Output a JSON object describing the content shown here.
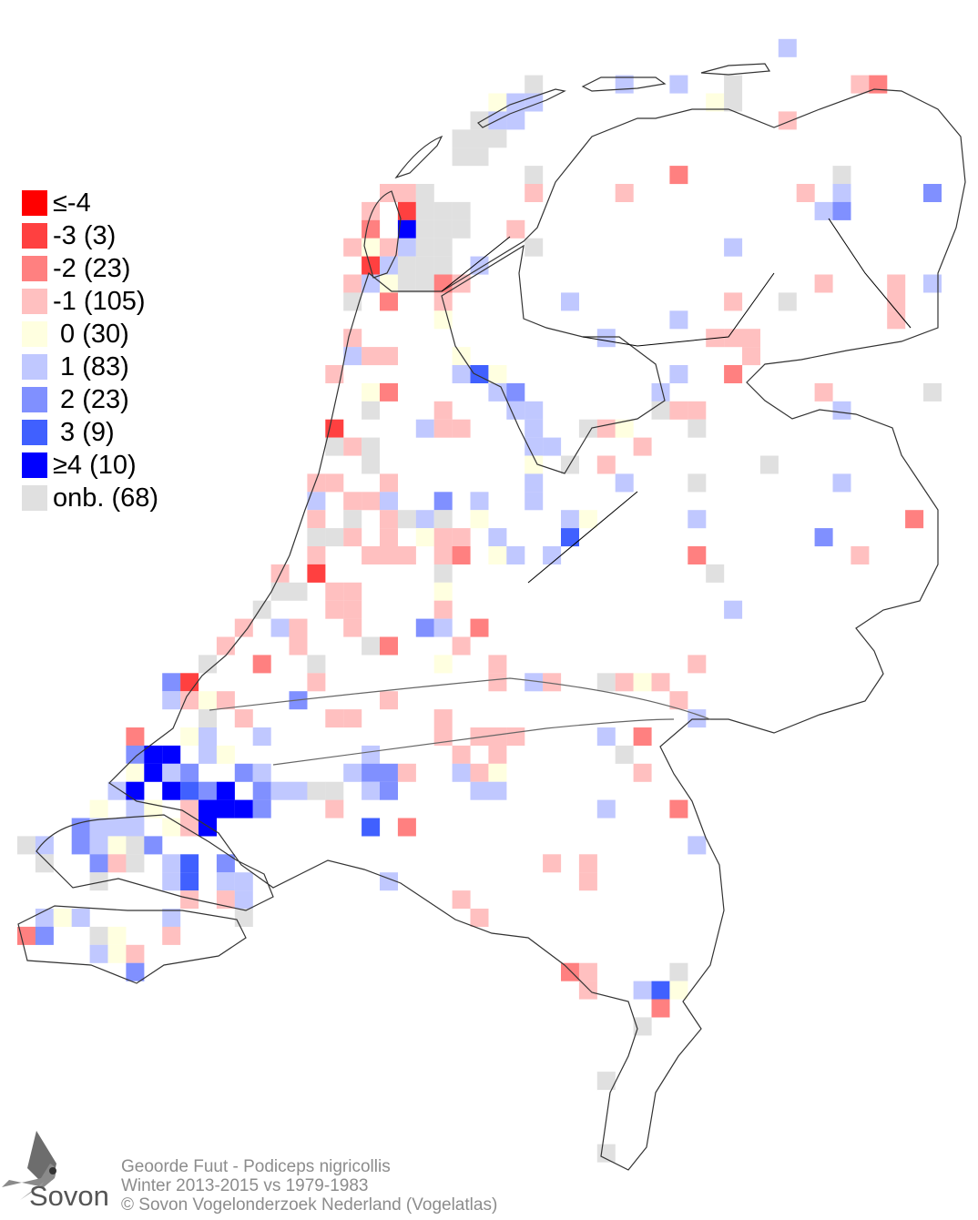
{
  "legend": {
    "items": [
      {
        "value": "-4",
        "label": "≤-4",
        "color": "#ff0000"
      },
      {
        "value": "-3",
        "label": "-3 (3)",
        "color": "#ff4040"
      },
      {
        "value": "-2",
        "label": "-2 (23)",
        "color": "#ff8080"
      },
      {
        "value": "-1",
        "label": "-1 (105)",
        "color": "#ffc0c0"
      },
      {
        "value": "0",
        "label": " 0 (30)",
        "color": "#ffffe0"
      },
      {
        "value": "1",
        "label": " 1 (83)",
        "color": "#c0c8ff"
      },
      {
        "value": "2",
        "label": " 2 (23)",
        "color": "#8090ff"
      },
      {
        "value": "3",
        "label": " 3 (9)",
        "color": "#4060ff"
      },
      {
        "value": "4",
        "label": "≥4 (10)",
        "color": "#0000ff"
      },
      {
        "value": "onb",
        "label": "onb. (68)",
        "color": "#e0e0e0"
      }
    ]
  },
  "footer": {
    "species": "Geoorde Fuut - Podiceps nigricollis",
    "period": "Winter 2013-2015 vs 1979-1983",
    "copyright": "© Sovon Vogelonderzoek Nederland (Vogelatlas)"
  },
  "logo": {
    "text": "Sovon"
  },
  "squares": [
    [
      42,
      2,
      "1"
    ],
    [
      28,
      4,
      "onb"
    ],
    [
      33,
      4,
      "1"
    ],
    [
      36,
      4,
      "1"
    ],
    [
      39,
      4,
      "onb"
    ],
    [
      46,
      4,
      "-1"
    ],
    [
      47,
      4,
      "-2"
    ],
    [
      26,
      5,
      "0"
    ],
    [
      27,
      5,
      "1"
    ],
    [
      28,
      5,
      "1"
    ],
    [
      38,
      5,
      "0"
    ],
    [
      39,
      5,
      "onb"
    ],
    [
      25,
      6,
      "onb"
    ],
    [
      26,
      6,
      "1"
    ],
    [
      27,
      6,
      "1"
    ],
    [
      42,
      6,
      "-1"
    ],
    [
      24,
      7,
      "onb"
    ],
    [
      25,
      7,
      "onb"
    ],
    [
      26,
      7,
      "onb"
    ],
    [
      24,
      8,
      "onb"
    ],
    [
      25,
      8,
      "onb"
    ],
    [
      28,
      9,
      "onb"
    ],
    [
      36,
      9,
      "-2"
    ],
    [
      45,
      9,
      "onb"
    ],
    [
      20,
      10,
      "-1"
    ],
    [
      21,
      10,
      "-1"
    ],
    [
      22,
      10,
      "onb"
    ],
    [
      28,
      10,
      "-1"
    ],
    [
      33,
      10,
      "-1"
    ],
    [
      43,
      10,
      "-1"
    ],
    [
      45,
      10,
      "1"
    ],
    [
      50,
      10,
      "2"
    ],
    [
      19,
      11,
      "-1"
    ],
    [
      21,
      11,
      "-3"
    ],
    [
      22,
      11,
      "onb"
    ],
    [
      23,
      11,
      "onb"
    ],
    [
      24,
      11,
      "onb"
    ],
    [
      44,
      11,
      "1"
    ],
    [
      45,
      11,
      "2"
    ],
    [
      19,
      12,
      "-2"
    ],
    [
      21,
      12,
      "4"
    ],
    [
      22,
      12,
      "onb"
    ],
    [
      23,
      12,
      "onb"
    ],
    [
      24,
      12,
      "onb"
    ],
    [
      27,
      12,
      "-1"
    ],
    [
      18,
      13,
      "-1"
    ],
    [
      19,
      13,
      "0"
    ],
    [
      20,
      13,
      "-1"
    ],
    [
      21,
      13,
      "1"
    ],
    [
      22,
      13,
      "onb"
    ],
    [
      23,
      13,
      "onb"
    ],
    [
      28,
      13,
      "onb"
    ],
    [
      39,
      13,
      "1"
    ],
    [
      19,
      14,
      "-3"
    ],
    [
      20,
      14,
      "1"
    ],
    [
      21,
      14,
      "onb"
    ],
    [
      22,
      14,
      "onb"
    ],
    [
      23,
      14,
      "onb"
    ],
    [
      25,
      14,
      "1"
    ],
    [
      18,
      15,
      "-1"
    ],
    [
      19,
      15,
      "1"
    ],
    [
      20,
      15,
      "0"
    ],
    [
      21,
      15,
      "onb"
    ],
    [
      22,
      15,
      "onb"
    ],
    [
      23,
      15,
      "-2"
    ],
    [
      24,
      15,
      "-1"
    ],
    [
      44,
      15,
      "-1"
    ],
    [
      48,
      15,
      "-1"
    ],
    [
      50,
      15,
      "1"
    ],
    [
      18,
      16,
      "onb"
    ],
    [
      20,
      16,
      "-2"
    ],
    [
      23,
      16,
      "-1"
    ],
    [
      30,
      16,
      "1"
    ],
    [
      39,
      16,
      "-1"
    ],
    [
      42,
      16,
      "onb"
    ],
    [
      48,
      16,
      "-1"
    ],
    [
      23,
      17,
      "0"
    ],
    [
      36,
      17,
      "1"
    ],
    [
      48,
      17,
      "-1"
    ],
    [
      18,
      18,
      "-1"
    ],
    [
      32,
      18,
      "1"
    ],
    [
      38,
      18,
      "-1"
    ],
    [
      39,
      18,
      "-1"
    ],
    [
      40,
      18,
      "-1"
    ],
    [
      18,
      19,
      "1"
    ],
    [
      19,
      19,
      "-1"
    ],
    [
      20,
      19,
      "-1"
    ],
    [
      24,
      19,
      "0"
    ],
    [
      40,
      19,
      "-1"
    ],
    [
      17,
      20,
      "-1"
    ],
    [
      24,
      20,
      "1"
    ],
    [
      25,
      20,
      "3"
    ],
    [
      26,
      20,
      "0"
    ],
    [
      36,
      20,
      "1"
    ],
    [
      39,
      20,
      "-2"
    ],
    [
      19,
      21,
      "0"
    ],
    [
      20,
      21,
      "-2"
    ],
    [
      26,
      21,
      "1"
    ],
    [
      27,
      21,
      "2"
    ],
    [
      35,
      21,
      "1"
    ],
    [
      44,
      21,
      "-1"
    ],
    [
      50,
      21,
      "onb"
    ],
    [
      19,
      22,
      "onb"
    ],
    [
      23,
      22,
      "-1"
    ],
    [
      27,
      22,
      "1"
    ],
    [
      28,
      22,
      "1"
    ],
    [
      35,
      22,
      "onb"
    ],
    [
      36,
      22,
      "-1"
    ],
    [
      37,
      22,
      "-1"
    ],
    [
      45,
      22,
      "1"
    ],
    [
      17,
      23,
      "-3"
    ],
    [
      22,
      23,
      "1"
    ],
    [
      23,
      23,
      "-1"
    ],
    [
      24,
      23,
      "-1"
    ],
    [
      28,
      23,
      "1"
    ],
    [
      31,
      23,
      "onb"
    ],
    [
      32,
      23,
      "-1"
    ],
    [
      33,
      23,
      "0"
    ],
    [
      37,
      23,
      "onb"
    ],
    [
      17,
      24,
      "onb"
    ],
    [
      18,
      24,
      "-1"
    ],
    [
      19,
      24,
      "onb"
    ],
    [
      28,
      24,
      "1"
    ],
    [
      29,
      24,
      "1"
    ],
    [
      34,
      24,
      "-1"
    ],
    [
      19,
      25,
      "onb"
    ],
    [
      28,
      25,
      "0"
    ],
    [
      30,
      25,
      "onb"
    ],
    [
      32,
      25,
      "-1"
    ],
    [
      41,
      25,
      "onb"
    ],
    [
      16,
      26,
      "-1"
    ],
    [
      17,
      26,
      "-1"
    ],
    [
      20,
      26,
      "-1"
    ],
    [
      28,
      26,
      "1"
    ],
    [
      33,
      26,
      "1"
    ],
    [
      37,
      26,
      "onb"
    ],
    [
      45,
      26,
      "1"
    ],
    [
      16,
      27,
      "1"
    ],
    [
      18,
      27,
      "-1"
    ],
    [
      19,
      27,
      "-1"
    ],
    [
      20,
      27,
      "1"
    ],
    [
      23,
      27,
      "2"
    ],
    [
      25,
      27,
      "1"
    ],
    [
      28,
      27,
      "1"
    ],
    [
      16,
      28,
      "-1"
    ],
    [
      18,
      28,
      "onb"
    ],
    [
      20,
      28,
      "-1"
    ],
    [
      21,
      28,
      "onb"
    ],
    [
      22,
      28,
      "1"
    ],
    [
      23,
      28,
      "onb"
    ],
    [
      25,
      28,
      "0"
    ],
    [
      30,
      28,
      "1"
    ],
    [
      31,
      28,
      "0"
    ],
    [
      37,
      28,
      "1"
    ],
    [
      49,
      28,
      "-2"
    ],
    [
      16,
      29,
      "onb"
    ],
    [
      17,
      29,
      "onb"
    ],
    [
      18,
      29,
      "-1"
    ],
    [
      20,
      29,
      "-1"
    ],
    [
      22,
      29,
      "0"
    ],
    [
      23,
      29,
      "-1"
    ],
    [
      24,
      29,
      "-1"
    ],
    [
      26,
      29,
      "1"
    ],
    [
      30,
      29,
      "3"
    ],
    [
      44,
      29,
      "2"
    ],
    [
      16,
      30,
      "-1"
    ],
    [
      19,
      30,
      "-1"
    ],
    [
      20,
      30,
      "-1"
    ],
    [
      21,
      30,
      "-1"
    ],
    [
      23,
      30,
      "-1"
    ],
    [
      24,
      30,
      "-2"
    ],
    [
      26,
      30,
      "0"
    ],
    [
      27,
      30,
      "1"
    ],
    [
      29,
      30,
      "1"
    ],
    [
      37,
      30,
      "-2"
    ],
    [
      46,
      30,
      "-1"
    ],
    [
      14,
      31,
      "-1"
    ],
    [
      16,
      31,
      "-3"
    ],
    [
      23,
      31,
      "onb"
    ],
    [
      38,
      31,
      "onb"
    ],
    [
      14,
      32,
      "onb"
    ],
    [
      15,
      32,
      "onb"
    ],
    [
      17,
      32,
      "-1"
    ],
    [
      18,
      32,
      "-1"
    ],
    [
      23,
      32,
      "0"
    ],
    [
      13,
      33,
      "onb"
    ],
    [
      17,
      33,
      "-1"
    ],
    [
      18,
      33,
      "-1"
    ],
    [
      23,
      33,
      "-1"
    ],
    [
      39,
      33,
      "1"
    ],
    [
      12,
      34,
      "-1"
    ],
    [
      14,
      34,
      "1"
    ],
    [
      15,
      34,
      "-1"
    ],
    [
      18,
      34,
      "-1"
    ],
    [
      22,
      34,
      "2"
    ],
    [
      23,
      34,
      "1"
    ],
    [
      25,
      34,
      "-2"
    ],
    [
      11,
      35,
      "-1"
    ],
    [
      15,
      35,
      "-1"
    ],
    [
      19,
      35,
      "onb"
    ],
    [
      20,
      35,
      "-2"
    ],
    [
      24,
      35,
      "-1"
    ],
    [
      10,
      36,
      "onb"
    ],
    [
      13,
      36,
      "-2"
    ],
    [
      16,
      36,
      "onb"
    ],
    [
      23,
      36,
      "0"
    ],
    [
      26,
      36,
      "-1"
    ],
    [
      37,
      36,
      "-1"
    ],
    [
      8,
      37,
      "2"
    ],
    [
      9,
      37,
      "-3"
    ],
    [
      16,
      37,
      "-1"
    ],
    [
      26,
      37,
      "-1"
    ],
    [
      28,
      37,
      "1"
    ],
    [
      29,
      37,
      "-1"
    ],
    [
      32,
      37,
      "onb"
    ],
    [
      33,
      37,
      "-1"
    ],
    [
      34,
      37,
      "0"
    ],
    [
      35,
      37,
      "-1"
    ],
    [
      8,
      38,
      "1"
    ],
    [
      9,
      38,
      "-1"
    ],
    [
      10,
      38,
      "0"
    ],
    [
      11,
      38,
      "-1"
    ],
    [
      15,
      38,
      "2"
    ],
    [
      20,
      38,
      "-1"
    ],
    [
      36,
      38,
      "-1"
    ],
    [
      10,
      39,
      "onb"
    ],
    [
      12,
      39,
      "-1"
    ],
    [
      17,
      39,
      "-1"
    ],
    [
      18,
      39,
      "-1"
    ],
    [
      23,
      39,
      "-1"
    ],
    [
      37,
      39,
      "1"
    ],
    [
      6,
      40,
      "-2"
    ],
    [
      9,
      40,
      "0"
    ],
    [
      10,
      40,
      "1"
    ],
    [
      13,
      40,
      "1"
    ],
    [
      23,
      40,
      "-1"
    ],
    [
      25,
      40,
      "-1"
    ],
    [
      26,
      40,
      "-1"
    ],
    [
      27,
      40,
      "-1"
    ],
    [
      32,
      40,
      "1"
    ],
    [
      34,
      40,
      "-2"
    ],
    [
      6,
      41,
      "2"
    ],
    [
      7,
      41,
      "4"
    ],
    [
      8,
      41,
      "4"
    ],
    [
      10,
      41,
      "1"
    ],
    [
      11,
      41,
      "0"
    ],
    [
      19,
      41,
      "1"
    ],
    [
      24,
      41,
      "-1"
    ],
    [
      26,
      41,
      "-1"
    ],
    [
      33,
      41,
      "onb"
    ],
    [
      6,
      42,
      "0"
    ],
    [
      7,
      42,
      "4"
    ],
    [
      8,
      42,
      "1"
    ],
    [
      9,
      42,
      "2"
    ],
    [
      12,
      42,
      "2"
    ],
    [
      13,
      42,
      "1"
    ],
    [
      18,
      42,
      "1"
    ],
    [
      19,
      42,
      "2"
    ],
    [
      20,
      42,
      "2"
    ],
    [
      21,
      42,
      "-1"
    ],
    [
      24,
      42,
      "1"
    ],
    [
      25,
      42,
      "-1"
    ],
    [
      26,
      42,
      "0"
    ],
    [
      34,
      42,
      "-1"
    ],
    [
      5,
      43,
      "1"
    ],
    [
      6,
      43,
      "4"
    ],
    [
      8,
      43,
      "4"
    ],
    [
      9,
      43,
      "3"
    ],
    [
      10,
      43,
      "2"
    ],
    [
      11,
      43,
      "4"
    ],
    [
      13,
      43,
      "2"
    ],
    [
      14,
      43,
      "1"
    ],
    [
      15,
      43,
      "1"
    ],
    [
      16,
      43,
      "onb"
    ],
    [
      17,
      43,
      "onb"
    ],
    [
      19,
      43,
      "1"
    ],
    [
      20,
      43,
      "2"
    ],
    [
      25,
      43,
      "1"
    ],
    [
      26,
      43,
      "1"
    ],
    [
      4,
      44,
      "0"
    ],
    [
      6,
      44,
      "1"
    ],
    [
      7,
      44,
      "0"
    ],
    [
      9,
      44,
      "-1"
    ],
    [
      10,
      44,
      "4"
    ],
    [
      11,
      44,
      "4"
    ],
    [
      12,
      44,
      "4"
    ],
    [
      13,
      44,
      "2"
    ],
    [
      17,
      44,
      "-1"
    ],
    [
      32,
      44,
      "1"
    ],
    [
      36,
      44,
      "-2"
    ],
    [
      3,
      45,
      "2"
    ],
    [
      4,
      45,
      "1"
    ],
    [
      5,
      45,
      "1"
    ],
    [
      6,
      45,
      "1"
    ],
    [
      8,
      45,
      "0"
    ],
    [
      9,
      45,
      "-1"
    ],
    [
      10,
      45,
      "4"
    ],
    [
      19,
      45,
      "3"
    ],
    [
      21,
      45,
      "-2"
    ],
    [
      0,
      46,
      "onb"
    ],
    [
      1,
      46,
      "1"
    ],
    [
      3,
      46,
      "2"
    ],
    [
      4,
      46,
      "1"
    ],
    [
      5,
      46,
      "0"
    ],
    [
      6,
      46,
      "onb"
    ],
    [
      7,
      46,
      "2"
    ],
    [
      37,
      46,
      "1"
    ],
    [
      1,
      47,
      "onb"
    ],
    [
      4,
      47,
      "2"
    ],
    [
      5,
      47,
      "-1"
    ],
    [
      6,
      47,
      "onb"
    ],
    [
      8,
      47,
      "1"
    ],
    [
      9,
      47,
      "3"
    ],
    [
      11,
      47,
      "2"
    ],
    [
      29,
      47,
      "-1"
    ],
    [
      31,
      47,
      "-1"
    ],
    [
      4,
      48,
      "onb"
    ],
    [
      8,
      48,
      "1"
    ],
    [
      9,
      48,
      "3"
    ],
    [
      11,
      48,
      "1"
    ],
    [
      12,
      48,
      "1"
    ],
    [
      20,
      48,
      "1"
    ],
    [
      31,
      48,
      "-1"
    ],
    [
      9,
      49,
      "-1"
    ],
    [
      11,
      49,
      "-1"
    ],
    [
      12,
      49,
      "1"
    ],
    [
      24,
      49,
      "-1"
    ],
    [
      1,
      50,
      "1"
    ],
    [
      2,
      50,
      "0"
    ],
    [
      3,
      50,
      "1"
    ],
    [
      8,
      50,
      "1"
    ],
    [
      12,
      50,
      "onb"
    ],
    [
      25,
      50,
      "-1"
    ],
    [
      0,
      51,
      "-2"
    ],
    [
      1,
      51,
      "2"
    ],
    [
      4,
      51,
      "onb"
    ],
    [
      5,
      51,
      "0"
    ],
    [
      8,
      51,
      "-1"
    ],
    [
      4,
      52,
      "1"
    ],
    [
      5,
      52,
      "0"
    ],
    [
      6,
      52,
      "-1"
    ],
    [
      6,
      53,
      "2"
    ],
    [
      30,
      53,
      "-2"
    ],
    [
      31,
      53,
      "-1"
    ],
    [
      36,
      53,
      "onb"
    ],
    [
      31,
      54,
      "-1"
    ],
    [
      34,
      54,
      "1"
    ],
    [
      35,
      54,
      "3"
    ],
    [
      36,
      54,
      "0"
    ],
    [
      35,
      55,
      "-2"
    ],
    [
      34,
      56,
      "onb"
    ],
    [
      32,
      59,
      "onb"
    ],
    [
      32,
      63,
      "onb"
    ]
  ]
}
